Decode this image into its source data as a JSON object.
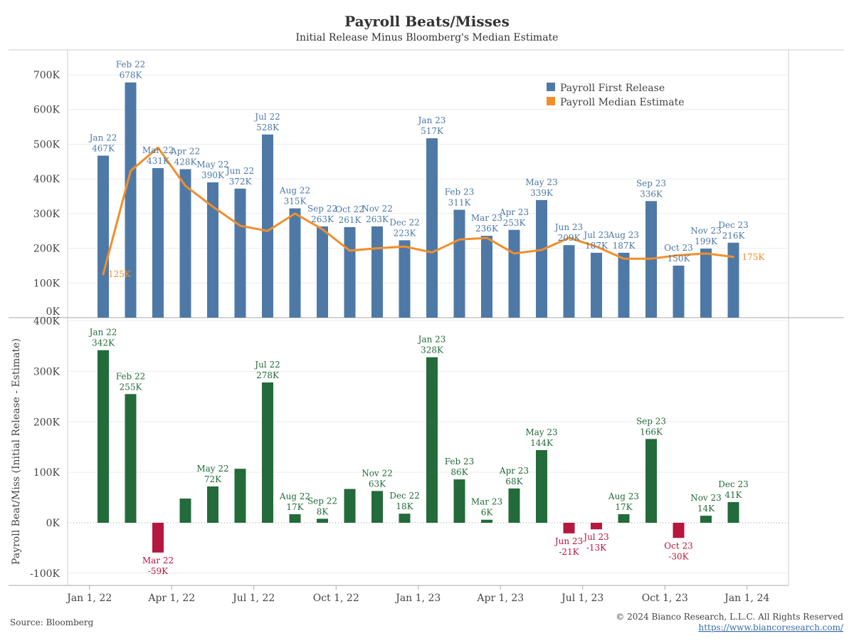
{
  "title": "Payroll Beats/Misses",
  "subtitle": "Initial Release Minus Bloomberg's Median Estimate",
  "source": "Source: Bloomberg",
  "copyright": "© 2024 Bianco Research, L.L.C. All Rights Reserved",
  "url": "https://www.biancoresearch.com/",
  "colors": {
    "release": "#4e79a7",
    "estimate": "#f28e2b",
    "beat": "#236b3a",
    "miss": "#b5173f",
    "grid": "#ececec",
    "axis": "#bbbbbb"
  },
  "chart_data": [
    {
      "type": "bar",
      "ylim": [
        0,
        750
      ],
      "yticks": [
        0,
        100,
        200,
        300,
        400,
        500,
        600,
        700
      ],
      "ytick_labels": [
        "0K",
        "100K",
        "200K",
        "300K",
        "400K",
        "500K",
        "600K",
        "700K"
      ],
      "legend": {
        "placement": "top-right",
        "items": [
          "Payroll First Release",
          "Payroll Median Estimate"
        ]
      },
      "categories": [
        "Jan 22",
        "Feb 22",
        "Mar 22",
        "Apr 22",
        "May 22",
        "Jun 22",
        "Jul 22",
        "Aug 22",
        "Sep 22",
        "Oct 22",
        "Nov 22",
        "Dec 22",
        "Jan 23",
        "Feb 23",
        "Mar 23",
        "Apr 23",
        "May 23",
        "Jun 23",
        "Jul 23",
        "Aug 23",
        "Sep 23",
        "Oct 23",
        "Nov 23",
        "Dec 23"
      ],
      "value_labels": [
        "467K",
        "678K",
        "431K",
        "428K",
        "390K",
        "372K",
        "528K",
        "315K",
        "263K",
        "261K",
        "263K",
        "223K",
        "517K",
        "311K",
        "236K",
        "253K",
        "339K",
        "209K",
        "187K",
        "187K",
        "336K",
        "150K",
        "199K",
        "216K"
      ],
      "series": [
        {
          "name": "Payroll First Release",
          "kind": "bar",
          "values": [
            467,
            678,
            431,
            428,
            390,
            372,
            528,
            315,
            263,
            261,
            263,
            223,
            517,
            311,
            236,
            253,
            339,
            209,
            187,
            187,
            336,
            150,
            199,
            216
          ]
        },
        {
          "name": "Payroll Median Estimate",
          "kind": "line",
          "values": [
            125,
            423,
            490,
            380,
            320,
            265,
            250,
            300,
            255,
            193,
            200,
            205,
            188,
            225,
            230,
            185,
            195,
            230,
            205,
            170,
            170,
            180,
            185,
            175
          ],
          "end_labels": {
            "first": "125K",
            "last": "175K"
          }
        }
      ]
    },
    {
      "type": "bar",
      "ylabel": "Payroll Beat/Miss (Initial Release - Estimate)",
      "ylim": [
        -125,
        410
      ],
      "yticks": [
        -100,
        0,
        100,
        200,
        300,
        400
      ],
      "ytick_labels": [
        "-100K",
        "0K",
        "100K",
        "200K",
        "300K",
        "400K"
      ],
      "categories": [
        "Jan 22",
        "Feb 22",
        "Mar 22",
        "Apr 22",
        "May 22",
        "Jun 22",
        "Jul 22",
        "Aug 22",
        "Sep 22",
        "Oct 22",
        "Nov 22",
        "Dec 22",
        "Jan 23",
        "Feb 23",
        "Mar 23",
        "Apr 23",
        "May 23",
        "Jun 23",
        "Jul 23",
        "Aug 23",
        "Sep 23",
        "Oct 23",
        "Nov 23",
        "Dec 23"
      ],
      "series": [
        {
          "name": "Beat/Miss",
          "values": [
            342,
            255,
            -59,
            48,
            72,
            107,
            278,
            17,
            8,
            67,
            63,
            18,
            328,
            86,
            6,
            68,
            144,
            -21,
            -13,
            17,
            166,
            -30,
            14,
            41
          ],
          "value_labels": [
            "342K",
            "255K",
            "-59K",
            "",
            "72K",
            "",
            "278K",
            "17K",
            "8K",
            "",
            "63K",
            "18K",
            "328K",
            "86K",
            "6K",
            "68K",
            "144K",
            "-21K",
            "-13K",
            "17K",
            "166K",
            "-30K",
            "14K",
            "41K"
          ]
        }
      ],
      "xticks": [
        {
          "label": "Jan 1, 22",
          "pos": -0.5
        },
        {
          "label": "Apr 1, 22",
          "pos": 2.5
        },
        {
          "label": "Jul 1, 22",
          "pos": 5.5
        },
        {
          "label": "Oct 1, 22",
          "pos": 8.5
        },
        {
          "label": "Jan 1, 23",
          "pos": 11.5
        },
        {
          "label": "Apr 1, 23",
          "pos": 14.5
        },
        {
          "label": "Jul 1, 23",
          "pos": 17.5
        },
        {
          "label": "Oct 1, 23",
          "pos": 20.5
        },
        {
          "label": "Jan 1, 24",
          "pos": 23.5
        }
      ]
    }
  ]
}
